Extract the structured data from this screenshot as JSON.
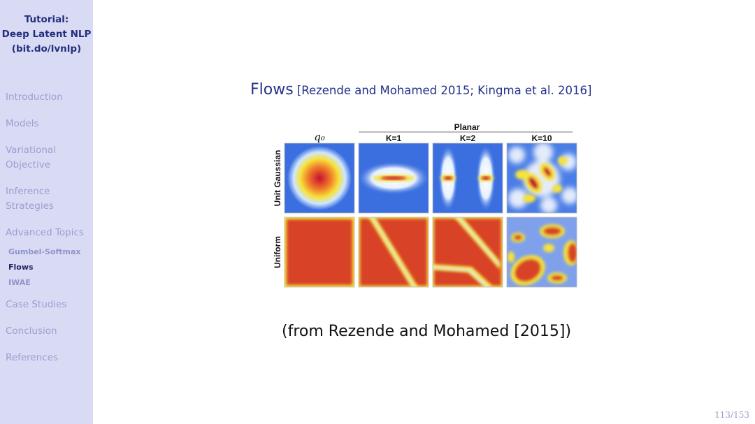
{
  "sidebar": {
    "title_lines": [
      "Tutorial:",
      "Deep Latent NLP",
      "(bit.do/lvnlp)"
    ],
    "sections": {
      "introduction": "Introduction",
      "models": "Models",
      "variational": [
        "Variational",
        "Objective"
      ],
      "inference": [
        "Inference",
        "Strategies"
      ],
      "advanced": "Advanced Topics",
      "case_studies": "Case Studies",
      "conclusion": "Conclusion",
      "references": "References"
    },
    "subsections": [
      "Gumbel-Softmax",
      "Flows",
      "IWAE"
    ],
    "active_subsection": "Flows"
  },
  "slide": {
    "title": "Flows",
    "citation": "[Rezende and Mohamed 2015; Kingma et al. 2016]",
    "caption": "(from Rezende and Mohamed [2015])",
    "page_number": "113/153"
  },
  "figure": {
    "group_label": "Planar",
    "column_labels": [
      "q₀",
      "K=1",
      "K=2",
      "K=10"
    ],
    "row_labels": [
      "Unit Gaussian",
      "Uniform"
    ],
    "colors": {
      "density_high": "#c8102e",
      "density_mid": "#f6e23a",
      "density_low": "#3b6fe0",
      "uniform_fill": "#d84228"
    }
  }
}
